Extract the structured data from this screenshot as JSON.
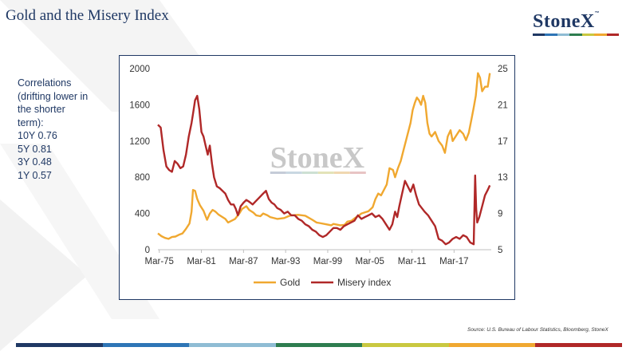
{
  "slide": {
    "title": "Gold and the Misery Index",
    "logo_text": "StoneX",
    "logo_tm": "™",
    "source": "Source: U.S. Bureau of Labour Statistics, Bloomberg, StoneX",
    "bar_colors": [
      "#1f3864",
      "#2e75b6",
      "#8fbcd4",
      "#2e7d4f",
      "#c9c840",
      "#f0a830",
      "#b02828"
    ]
  },
  "correlations": {
    "lines": [
      "Correlations",
      "(drifting lower in",
      "the shorter",
      "term):",
      "10Y 0.76",
      "5Y 0.81",
      "3Y 0.48",
      "1Y 0.57"
    ]
  },
  "chart_data": {
    "type": "line",
    "watermark": "StoneX",
    "x_tick_labels": [
      "Mar-75",
      "Mar-81",
      "Mar-87",
      "Mar-93",
      "Mar-99",
      "Mar-05",
      "Mar-11",
      "Mar-17"
    ],
    "x_tick_values": [
      1975.2,
      1981.2,
      1987.2,
      1993.2,
      1999.2,
      2005.2,
      2011.2,
      2017.2
    ],
    "xlim": [
      1975.0,
      2022.5
    ],
    "y_left": {
      "lim": [
        0,
        2000
      ],
      "ticks": [
        0,
        400,
        800,
        1200,
        1600,
        2000
      ]
    },
    "y_right": {
      "lim": [
        5,
        25
      ],
      "ticks": [
        5,
        9,
        13,
        17,
        21,
        25
      ]
    },
    "legend_position": "bottom",
    "series": [
      {
        "name": "Gold",
        "axis": "left",
        "color": "#f0a830",
        "x": [
          1975.0,
          1975.5,
          1976.0,
          1976.5,
          1977.0,
          1977.5,
          1978.0,
          1978.5,
          1979.0,
          1979.5,
          1979.8,
          1980.0,
          1980.3,
          1980.6,
          1981.0,
          1981.5,
          1982.0,
          1982.4,
          1982.8,
          1983.2,
          1983.6,
          1984.0,
          1984.6,
          1985.0,
          1985.5,
          1986.0,
          1986.6,
          1987.0,
          1987.6,
          1988.0,
          1988.6,
          1989.0,
          1989.6,
          1990.0,
          1990.6,
          1991.0,
          1992.0,
          1993.0,
          1993.6,
          1994.0,
          1995.0,
          1996.0,
          1997.0,
          1997.6,
          1998.0,
          1999.0,
          1999.7,
          2000.0,
          2001.0,
          2001.6,
          2002.0,
          2002.6,
          2003.0,
          2003.6,
          2004.0,
          2004.6,
          2005.0,
          2005.6,
          2006.0,
          2006.4,
          2006.8,
          2007.2,
          2007.6,
          2008.0,
          2008.5,
          2008.8,
          2009.2,
          2009.6,
          2010.0,
          2010.5,
          2011.0,
          2011.3,
          2011.6,
          2011.9,
          2012.2,
          2012.5,
          2012.8,
          2013.1,
          2013.4,
          2013.7,
          2014.0,
          2014.5,
          2015.0,
          2015.5,
          2015.9,
          2016.3,
          2016.7,
          2017.0,
          2017.5,
          2018.0,
          2018.5,
          2018.9,
          2019.3,
          2019.7,
          2020.0,
          2020.3,
          2020.6,
          2020.9,
          2021.2,
          2021.6,
          2022.0,
          2022.3
        ],
        "y": [
          180,
          150,
          130,
          120,
          140,
          145,
          165,
          180,
          230,
          290,
          420,
          660,
          650,
          560,
          490,
          430,
          330,
          400,
          440,
          420,
          390,
          370,
          340,
          300,
          320,
          340,
          400,
          450,
          480,
          440,
          410,
          380,
          370,
          400,
          380,
          360,
          340,
          350,
          370,
          380,
          385,
          375,
          330,
          300,
          295,
          280,
          270,
          285,
          270,
          275,
          310,
          320,
          345,
          375,
          400,
          415,
          425,
          470,
          560,
          620,
          600,
          660,
          720,
          900,
          880,
          800,
          900,
          980,
          1100,
          1250,
          1400,
          1540,
          1620,
          1680,
          1650,
          1600,
          1700,
          1620,
          1400,
          1280,
          1250,
          1300,
          1200,
          1150,
          1070,
          1250,
          1320,
          1200,
          1260,
          1320,
          1280,
          1210,
          1290,
          1450,
          1570,
          1700,
          1950,
          1900,
          1750,
          1800,
          1800,
          1950
        ]
      },
      {
        "name": "Misery index",
        "axis": "right",
        "color": "#b02828",
        "x": [
          1975.0,
          1975.4,
          1975.8,
          1976.2,
          1976.6,
          1977.0,
          1977.4,
          1977.8,
          1978.2,
          1978.6,
          1979.0,
          1979.4,
          1979.8,
          1980.0,
          1980.3,
          1980.6,
          1980.9,
          1981.2,
          1981.5,
          1981.8,
          1982.1,
          1982.4,
          1982.7,
          1983.0,
          1983.4,
          1983.8,
          1984.2,
          1984.6,
          1985.0,
          1985.4,
          1985.8,
          1986.1,
          1986.4,
          1986.8,
          1987.2,
          1987.6,
          1988.0,
          1988.5,
          1989.0,
          1989.5,
          1990.0,
          1990.4,
          1990.8,
          1991.2,
          1991.6,
          1992.0,
          1992.5,
          1993.0,
          1993.5,
          1994.0,
          1994.5,
          1995.0,
          1995.5,
          1996.0,
          1996.5,
          1997.0,
          1997.5,
          1998.0,
          1998.5,
          1999.0,
          1999.5,
          2000.0,
          2000.5,
          2001.0,
          2001.5,
          2002.0,
          2002.5,
          2003.0,
          2003.5,
          2004.0,
          2004.5,
          2005.0,
          2005.5,
          2006.0,
          2006.5,
          2007.0,
          2007.5,
          2008.0,
          2008.4,
          2008.8,
          2009.1,
          2009.4,
          2009.8,
          2010.2,
          2010.6,
          2011.0,
          2011.4,
          2011.8,
          2012.2,
          2012.6,
          2013.0,
          2013.5,
          2014.0,
          2014.5,
          2015.0,
          2015.5,
          2016.0,
          2016.5,
          2017.0,
          2017.5,
          2018.0,
          2018.5,
          2019.0,
          2019.5,
          2020.0,
          2020.2,
          2020.35,
          2020.5,
          2020.8,
          2021.2,
          2021.6,
          2022.0,
          2022.3
        ],
        "y": [
          18.8,
          18.5,
          16,
          14.2,
          13.8,
          13.6,
          14.8,
          14.5,
          14,
          14.2,
          15.5,
          17.5,
          19,
          20,
          21.5,
          22,
          20.5,
          18,
          17.5,
          16.5,
          15.5,
          16.5,
          14.5,
          13,
          12,
          11.8,
          11.5,
          11.2,
          10.5,
          10,
          10,
          9.5,
          8.8,
          9.8,
          10.2,
          10.5,
          10.3,
          10,
          10.4,
          10.8,
          11.2,
          11.5,
          10.6,
          10.2,
          10,
          9.6,
          9.4,
          9,
          9.2,
          8.8,
          8.8,
          8.4,
          8.2,
          7.8,
          7.6,
          7.2,
          7,
          6.6,
          6.4,
          6.6,
          7,
          7.4,
          7.4,
          7.2,
          7.6,
          7.8,
          8,
          8.2,
          8.8,
          8.4,
          8.6,
          8.8,
          9,
          8.6,
          8.8,
          8.4,
          7.8,
          7.2,
          7.8,
          9.2,
          8.6,
          9.8,
          11.2,
          12.6,
          12,
          11.4,
          12.2,
          11,
          10,
          9.6,
          9.2,
          8.8,
          8.2,
          7.6,
          6.2,
          6,
          5.6,
          5.8,
          6.2,
          6.4,
          6.2,
          6.6,
          6.4,
          5.8,
          5.6,
          13.2,
          9.5,
          8,
          8.6,
          9.8,
          11,
          11.6,
          12.1
        ]
      }
    ]
  }
}
